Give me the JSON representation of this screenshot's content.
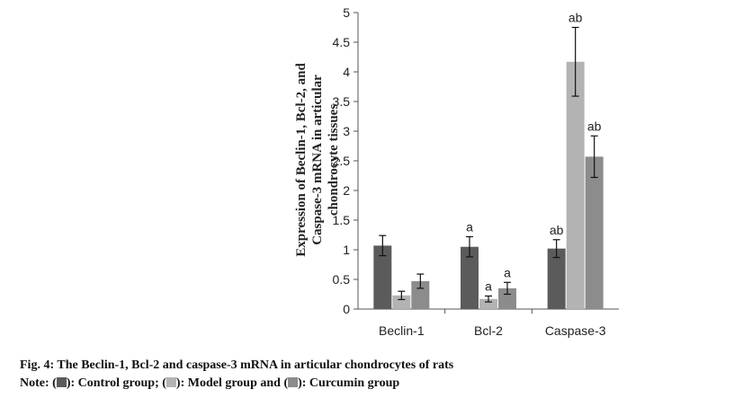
{
  "chart_data": {
    "type": "bar",
    "ylabel_lines": [
      "Expression of Beclin-1, Bcl-2, and",
      "Caspase-3 mRNA in articular",
      "chondrocyte tissues"
    ],
    "categories": [
      "Beclin-1",
      "Bcl-2",
      "Caspase-3"
    ],
    "yticks": [
      "0",
      "0.5",
      "1",
      "1.5",
      "2",
      "2.5",
      "3",
      "3.5",
      "4",
      "4.5",
      "5"
    ],
    "ylim": [
      0,
      5
    ],
    "grid": false,
    "series": [
      {
        "color": "#5b5b5b",
        "values": [
          1.07,
          1.05,
          1.02
        ],
        "errors": [
          0.17,
          0.17,
          0.15
        ],
        "annotations": [
          "",
          "a",
          "ab"
        ]
      },
      {
        "color": "#b3b3b3",
        "values": [
          0.23,
          0.17,
          4.17
        ],
        "errors": [
          0.07,
          0.05,
          0.58
        ],
        "annotations": [
          "",
          "a",
          "ab"
        ]
      },
      {
        "color": "#8c8c8c",
        "values": [
          0.47,
          0.35,
          2.57
        ],
        "errors": [
          0.12,
          0.1,
          0.35
        ],
        "annotations": [
          "",
          "a",
          "ab"
        ]
      }
    ]
  },
  "caption": {
    "title": "Fig. 4: The Beclin-1, Bcl-2 and caspase-3 mRNA in articular chondrocytes of rats",
    "note_prefix": "Note: (",
    "control_label": "): Control group; (",
    "model_label": "): Model group and (",
    "curcumin_label": "): Curcumin group",
    "colors": {
      "control": "#5b5b5b",
      "model": "#b3b3b3",
      "curcumin": "#8c8c8c"
    }
  }
}
